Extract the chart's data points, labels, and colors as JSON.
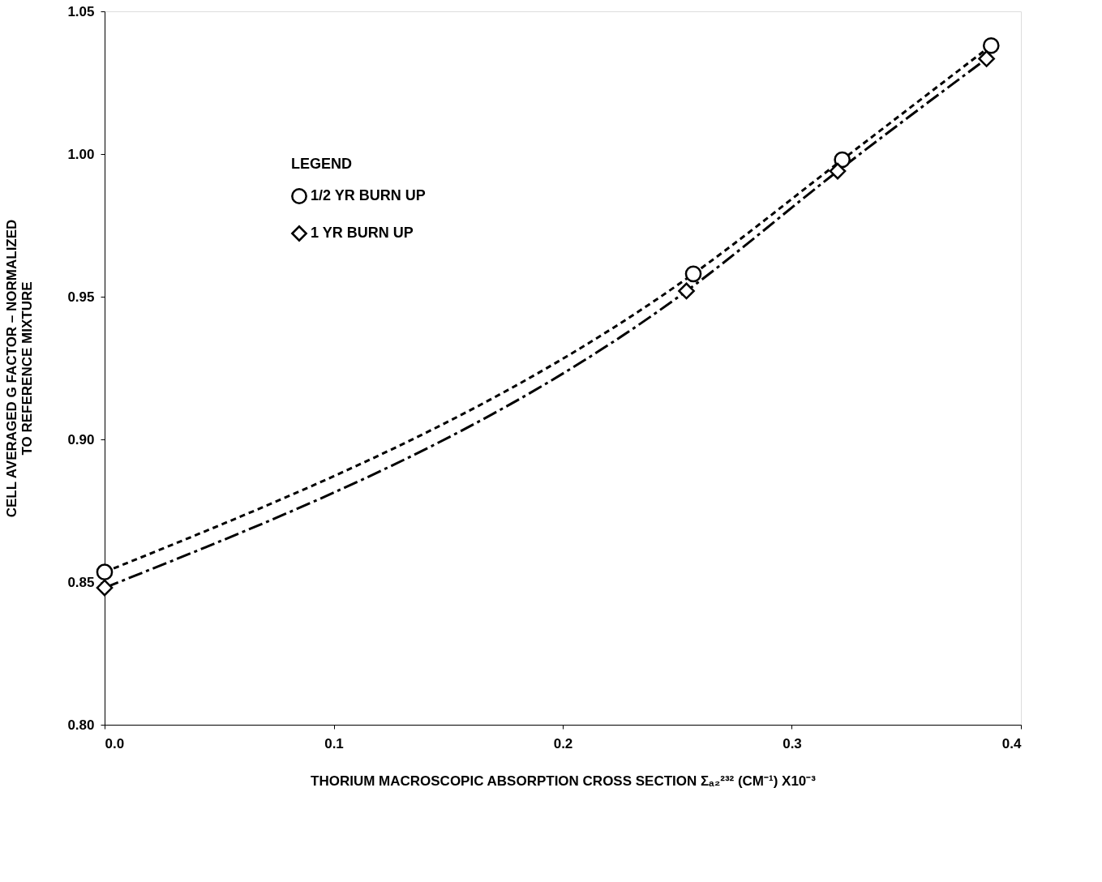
{
  "chart_data": {
    "type": "line",
    "xlabel": "THORIUM MACROSCOPIC ABSORPTION CROSS SECTION Σₐ₂²³² (CM⁻¹) X10⁻³",
    "ylabel": "CELL AVERAGED G FACTOR  –  NORMALIZED\nTO REFERENCE MIXTURE",
    "legend_title": "LEGEND",
    "series": [
      {
        "name": "1/2 YR BURN UP",
        "color": "#000000",
        "marker": "circle",
        "line_style": "dashed",
        "x": [
          0.0,
          0.257,
          0.322,
          0.387
        ],
        "values": [
          0.8535,
          0.958,
          0.998,
          1.038
        ]
      },
      {
        "name": "1 YR BURN UP",
        "color": "#000000",
        "marker": "diamond",
        "line_style": "dashed",
        "x": [
          0.0,
          0.254,
          0.32,
          0.385
        ],
        "values": [
          0.848,
          0.952,
          0.994,
          1.0334
        ]
      }
    ],
    "xlim": [
      0.0,
      0.4
    ],
    "xticks": [
      {
        "value": 0.0,
        "label": "0.0"
      },
      {
        "value": 0.1,
        "label": "0.1"
      },
      {
        "value": 0.2,
        "label": "0.2"
      },
      {
        "value": 0.3,
        "label": "0.3"
      },
      {
        "value": 0.4,
        "label": "0.4"
      }
    ],
    "ylim": [
      0.8,
      1.05
    ],
    "yticks": [
      {
        "value": 0.8,
        "label": "0.80"
      },
      {
        "value": 0.85,
        "label": "0.85"
      },
      {
        "value": 0.9,
        "label": "0.90"
      },
      {
        "value": 0.95,
        "label": "0.95"
      },
      {
        "value": 1.0,
        "label": "1.00"
      },
      {
        "value": 1.05,
        "label": "1.05"
      }
    ],
    "grid": false,
    "legend": "top left"
  }
}
